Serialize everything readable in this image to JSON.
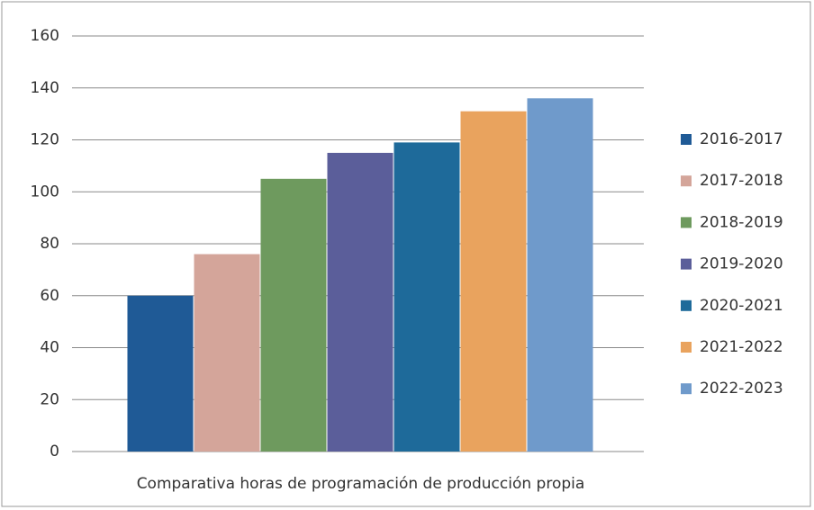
{
  "chart_data": {
    "type": "bar",
    "categories": [
      "Comparativa horas de programación de producción propia"
    ],
    "series": [
      {
        "name": "2016-2017",
        "color": "#1f5a96",
        "values": [
          60
        ]
      },
      {
        "name": "2017-2018",
        "color": "#d4a59a",
        "values": [
          76
        ]
      },
      {
        "name": "2018-2019",
        "color": "#6e9a5e",
        "values": [
          105
        ]
      },
      {
        "name": "2019-2020",
        "color": "#5b5e9a",
        "values": [
          115
        ]
      },
      {
        "name": "2020-2021",
        "color": "#1e6a9a",
        "values": [
          119
        ]
      },
      {
        "name": "2021-2022",
        "color": "#e9a35e",
        "values": [
          131
        ]
      },
      {
        "name": "2022-2023",
        "color": "#6f9acb",
        "values": [
          136
        ]
      }
    ],
    "ylim": [
      0,
      160
    ],
    "yticks": [
      0,
      20,
      40,
      60,
      80,
      100,
      120,
      140,
      160
    ],
    "grid": true,
    "legend": "right"
  }
}
